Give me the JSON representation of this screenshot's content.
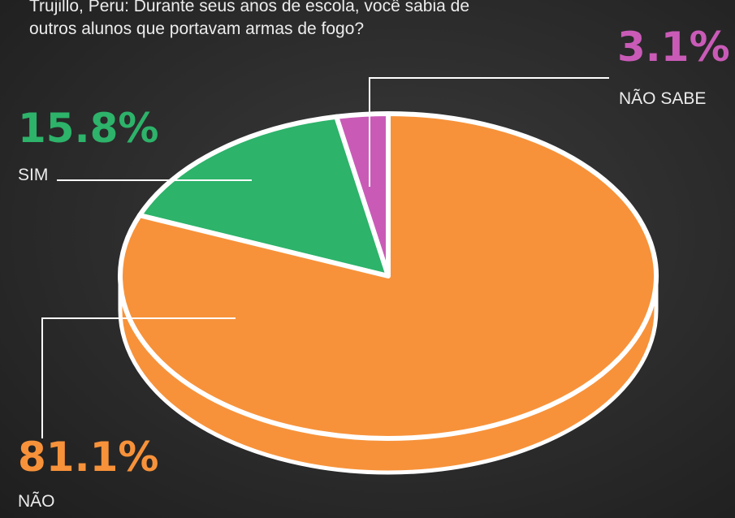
{
  "chart_data": {
    "type": "pie",
    "title": "Trujillo, Peru: Durante seus anos de escola, você sabia de outros alunos que portavam armas de fogo?",
    "categories": [
      "NÃO SABE",
      "SIM",
      "NÃO"
    ],
    "values": [
      3.1,
      15.8,
      81.1
    ],
    "value_labels": [
      "3.1%",
      "15.8%",
      "81.1%"
    ],
    "colors": [
      "#c95bb7",
      "#2db36a",
      "#f7923a"
    ]
  }
}
